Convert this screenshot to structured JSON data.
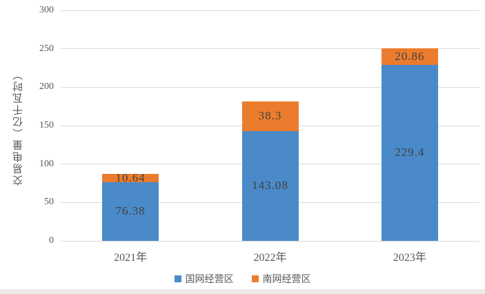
{
  "chart_data": {
    "type": "bar",
    "stacked": true,
    "title": "",
    "xlabel": "",
    "ylabel": "交易电量（亿千瓦时）",
    "categories": [
      "2021年",
      "2022年",
      "2023年"
    ],
    "series": [
      {
        "name": "国网经营区",
        "color": "#4A8AC9",
        "values": [
          76.38,
          143.08,
          229.4
        ],
        "labels": [
          "76.38",
          "143.08",
          "229.4"
        ]
      },
      {
        "name": "南网经营区",
        "color": "#EC7C2D",
        "values": [
          10.64,
          38.3,
          20.86
        ],
        "labels": [
          "10.64",
          "38.3",
          "20.86"
        ]
      }
    ],
    "totals": [
      87.02,
      181.38,
      250.26
    ],
    "ylim": [
      0,
      300
    ],
    "yticks": [
      0,
      50,
      100,
      150,
      200,
      250,
      300
    ],
    "grid": true,
    "legend_position": "bottom",
    "colors": {
      "gridline": "#d9d9d9",
      "axis_text": "#595959",
      "data_label": "#404040",
      "background": "#ffffff",
      "bottom_strip": "#edeae7"
    }
  }
}
